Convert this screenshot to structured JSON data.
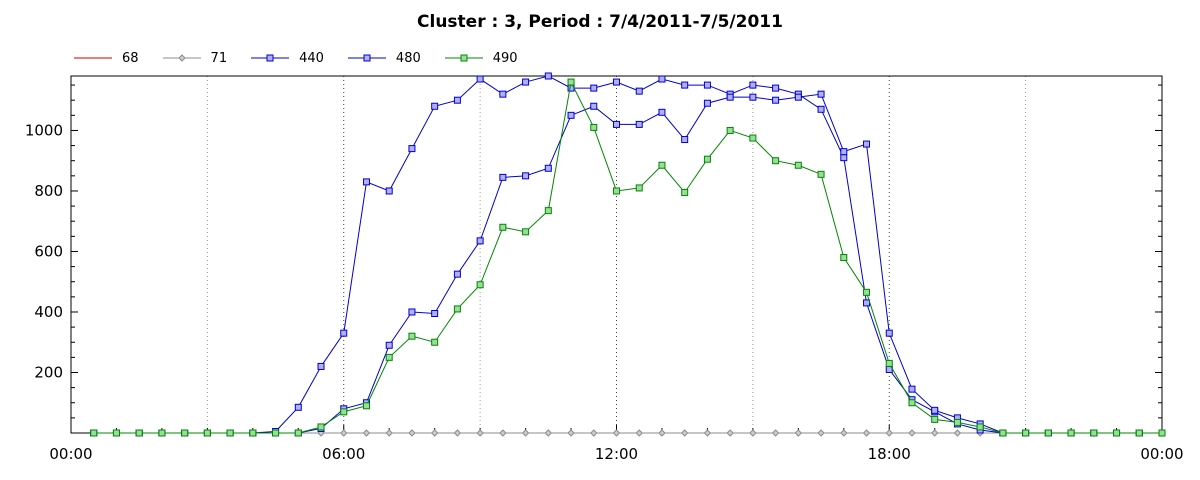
{
  "chart_data": {
    "type": "line",
    "title": "Cluster : 3, Period : 7/4/2011-7/5/2011",
    "xlabel": "",
    "ylabel": "",
    "xlim": [
      0,
      24
    ],
    "ylim": [
      0,
      1180
    ],
    "x_tick_labels": [
      "00:00",
      "06:00",
      "12:00",
      "18:00",
      "00:00"
    ],
    "y_ticks": [
      200,
      400,
      600,
      800,
      1000
    ],
    "grid": "vertical dotted",
    "legend_position": "top-left",
    "x": [
      0.5,
      1,
      1.5,
      2,
      2.5,
      3,
      3.5,
      4,
      4.5,
      5,
      5.5,
      6,
      6.5,
      7,
      7.5,
      8,
      8.5,
      9,
      9.5,
      10,
      10.5,
      11,
      11.5,
      12,
      12.5,
      13,
      13.5,
      14,
      14.5,
      15,
      15.5,
      16,
      16.5,
      17,
      17.5,
      18,
      18.5,
      19,
      19.5,
      20,
      20.5,
      21,
      21.5,
      22,
      22.5,
      23,
      23.5,
      24
    ],
    "series": [
      {
        "name": "68",
        "color": "#cc0000",
        "marker": "none",
        "values": [
          0,
          0,
          0,
          0,
          0,
          0,
          0,
          0,
          0,
          0,
          0,
          0,
          0,
          0,
          0,
          0,
          0,
          0,
          0,
          0,
          0,
          0,
          0,
          0,
          0,
          0,
          0,
          0,
          0,
          0,
          0,
          0,
          0,
          0,
          0,
          0,
          0,
          0,
          0,
          0,
          0,
          0,
          0,
          0,
          0,
          0,
          0,
          0
        ]
      },
      {
        "name": "71",
        "color": "#8c8c8c",
        "marker": "diamond",
        "values": [
          0,
          0,
          0,
          0,
          0,
          0,
          0,
          0,
          0,
          0,
          0,
          0,
          0,
          0,
          0,
          0,
          0,
          0,
          0,
          0,
          0,
          0,
          0,
          0,
          0,
          0,
          0,
          0,
          0,
          0,
          0,
          0,
          0,
          0,
          0,
          0,
          0,
          0,
          0,
          0,
          0,
          0,
          0,
          0,
          0,
          0,
          0,
          0
        ]
      },
      {
        "name": "440",
        "color": "#0000cc",
        "marker": "square",
        "values": [
          0,
          0,
          0,
          0,
          0,
          0,
          0,
          0,
          5,
          85,
          220,
          330,
          830,
          800,
          940,
          1080,
          1100,
          1170,
          1120,
          1160,
          1180,
          1140,
          1140,
          1160,
          1130,
          1170,
          1150,
          1150,
          1120,
          1150,
          1140,
          1120,
          1070,
          910,
          430,
          210,
          110,
          70,
          30,
          10,
          0,
          0,
          0,
          0,
          0,
          0,
          0,
          0
        ]
      },
      {
        "name": "480",
        "color": "#0000cc",
        "marker": "square",
        "values": [
          0,
          0,
          0,
          0,
          0,
          0,
          0,
          0,
          0,
          0,
          15,
          80,
          100,
          290,
          400,
          395,
          525,
          635,
          845,
          850,
          875,
          1050,
          1080,
          1020,
          1020,
          1060,
          970,
          1090,
          1110,
          1110,
          1100,
          1110,
          1120,
          930,
          955,
          330,
          145,
          75,
          50,
          30,
          0,
          0,
          0,
          0,
          0,
          0,
          0,
          0
        ]
      },
      {
        "name": "490",
        "color": "#008800",
        "marker": "square",
        "values": [
          0,
          0,
          0,
          0,
          0,
          0,
          0,
          0,
          0,
          0,
          20,
          70,
          90,
          250,
          320,
          300,
          410,
          490,
          680,
          665,
          735,
          1160,
          1010,
          800,
          810,
          885,
          795,
          905,
          1000,
          975,
          900,
          885,
          855,
          580,
          465,
          230,
          100,
          45,
          35,
          20,
          0,
          0,
          0,
          0,
          0,
          0,
          0,
          0
        ]
      }
    ]
  }
}
